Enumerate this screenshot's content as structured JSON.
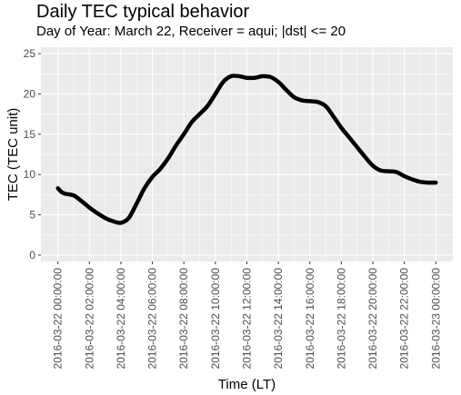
{
  "chart_data": {
    "type": "line",
    "title": "Daily TEC typical behavior",
    "subtitle": "Day of Year: March 22, Receiver = aqui; |dst| <= 20",
    "xlabel": "Time (LT)",
    "ylabel": "TEC (TEC unit)",
    "ylim": [
      -0.8,
      25.8
    ],
    "yticks": [
      0,
      5,
      10,
      15,
      20,
      25
    ],
    "xlim": [
      "2016-03-22 00:00:00",
      "2016-03-23 00:00:00"
    ],
    "xticks": [
      "2016-03-22 00:00:00",
      "2016-03-22 02:00:00",
      "2016-03-22 04:00:00",
      "2016-03-22 06:00:00",
      "2016-03-22 08:00:00",
      "2016-03-22 10:00:00",
      "2016-03-22 12:00:00",
      "2016-03-22 14:00:00",
      "2016-03-22 16:00:00",
      "2016-03-22 18:00:00",
      "2016-03-22 20:00:00",
      "2016-03-22 22:00:00",
      "2016-03-23 00:00:00"
    ],
    "grid": true,
    "background": "#ebebeb",
    "line_color": "#000000",
    "series": [
      {
        "x": [
          "2016-03-22 00:00:00",
          "2016-03-22 00:15:00",
          "2016-03-22 00:30:00",
          "2016-03-22 01:00:00",
          "2016-03-22 01:30:00",
          "2016-03-22 02:00:00",
          "2016-03-22 02:30:00",
          "2016-03-22 03:00:00",
          "2016-03-22 03:30:00",
          "2016-03-22 04:00:00",
          "2016-03-22 04:30:00",
          "2016-03-22 05:00:00",
          "2016-03-22 05:30:00",
          "2016-03-22 06:00:00",
          "2016-03-22 06:30:00",
          "2016-03-22 07:00:00",
          "2016-03-22 07:30:00",
          "2016-03-22 08:00:00",
          "2016-03-22 08:30:00",
          "2016-03-22 09:00:00",
          "2016-03-22 09:30:00",
          "2016-03-22 10:00:00",
          "2016-03-22 10:30:00",
          "2016-03-22 11:00:00",
          "2016-03-22 11:30:00",
          "2016-03-22 12:00:00",
          "2016-03-22 12:30:00",
          "2016-03-22 13:00:00",
          "2016-03-22 13:30:00",
          "2016-03-22 14:00:00",
          "2016-03-22 14:30:00",
          "2016-03-22 15:00:00",
          "2016-03-22 15:30:00",
          "2016-03-22 16:00:00",
          "2016-03-22 16:30:00",
          "2016-03-22 17:00:00",
          "2016-03-22 17:30:00",
          "2016-03-22 18:00:00",
          "2016-03-22 18:30:00",
          "2016-03-22 19:00:00",
          "2016-03-22 19:30:00",
          "2016-03-22 20:00:00",
          "2016-03-22 20:30:00",
          "2016-03-22 21:00:00",
          "2016-03-22 21:30:00",
          "2016-03-22 22:00:00",
          "2016-03-22 22:30:00",
          "2016-03-22 23:00:00",
          "2016-03-22 23:30:00",
          "2016-03-23 00:00:00"
        ],
        "values": [
          8.3,
          7.8,
          7.6,
          7.4,
          6.7,
          5.9,
          5.2,
          4.6,
          4.2,
          4.0,
          4.6,
          6.4,
          8.3,
          9.7,
          10.7,
          12.0,
          13.6,
          15.0,
          16.5,
          17.5,
          18.5,
          20.0,
          21.5,
          22.2,
          22.2,
          22.0,
          22.0,
          22.2,
          22.1,
          21.5,
          20.5,
          19.6,
          19.2,
          19.1,
          19.0,
          18.5,
          17.2,
          15.8,
          14.6,
          13.4,
          12.2,
          11.1,
          10.5,
          10.4,
          10.3,
          9.8,
          9.4,
          9.1,
          9.0,
          9.0
        ]
      }
    ]
  }
}
